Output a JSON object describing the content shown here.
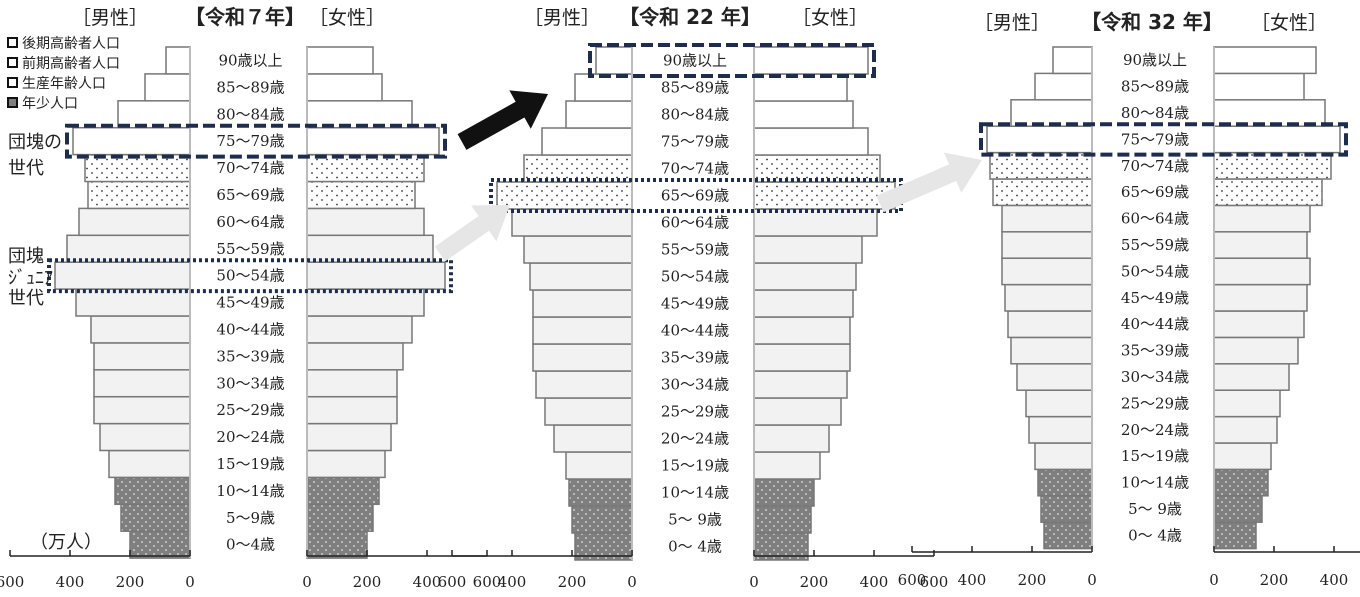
{
  "chart_data": {
    "type": "bar",
    "subtype": "population-pyramid",
    "unit_label": "（万人）",
    "age_groups": [
      "0～4歳",
      "5～9歳",
      "10～14歳",
      "15～19歳",
      "20～24歳",
      "25～29歳",
      "30～34歳",
      "35～39歳",
      "40～44歳",
      "45～49歳",
      "50～54歳",
      "55～59歳",
      "60～64歳",
      "65～69歳",
      "70～74歳",
      "75～79歳",
      "80～84歳",
      "85～89歳",
      "90歳以上"
    ],
    "age_groups_panel23": [
      "0～ 4歳",
      "5～ 9歳",
      "10～14歳",
      "15～19歳",
      "20～24歳",
      "25～29歳",
      "30～34歳",
      "35～39歳",
      "40～44歳",
      "45～49歳",
      "50～54歳",
      "55～59歳",
      "60～64歳",
      "65～69歳",
      "70～74歳",
      "75～79歳",
      "80～84歳",
      "85～89歳",
      "90歳以上"
    ],
    "category_colors": {
      "elderly_late": "#ffffff",
      "elderly_early": "#ffffff",
      "working_age": "#f2f2f2",
      "youth": "#7f7f7f"
    },
    "legend": [
      {
        "label": "後期高齢者人口",
        "key": "elderly_late"
      },
      {
        "label": "前期高齢者人口",
        "key": "elderly_early"
      },
      {
        "label": "生産年齢人口",
        "key": "working_age"
      },
      {
        "label": "年少人口",
        "key": "youth"
      }
    ],
    "xlim": [
      0,
      600
    ],
    "male_ticks": [
      "600",
      "400",
      "200",
      "0"
    ],
    "female_ticks": [
      "0",
      "200",
      "400",
      "600"
    ],
    "panels": [
      {
        "title": "【令和７年】",
        "male_label": "［男性］",
        "female_label": "［女性］",
        "male": [
          200,
          230,
          250,
          270,
          300,
          320,
          320,
          320,
          330,
          380,
          450,
          410,
          370,
          340,
          350,
          390,
          240,
          150,
          80
        ],
        "female": [
          200,
          220,
          240,
          260,
          280,
          300,
          300,
          320,
          350,
          390,
          460,
          420,
          390,
          360,
          390,
          440,
          350,
          250,
          220
        ],
        "highlights": [
          {
            "age": "75～79歳",
            "style": "dashed"
          },
          {
            "age": "50～54歳",
            "style": "dotted"
          }
        ]
      },
      {
        "title": "【令和 22 年】",
        "male_label": "［男性］",
        "female_label": "［女性］",
        "male": [
          190,
          200,
          210,
          220,
          260,
          290,
          320,
          330,
          330,
          330,
          340,
          360,
          400,
          450,
          360,
          300,
          220,
          190,
          120
        ],
        "female": [
          180,
          190,
          200,
          220,
          250,
          290,
          310,
          320,
          320,
          330,
          340,
          360,
          410,
          470,
          420,
          380,
          330,
          310,
          380
        ],
        "highlights": [
          {
            "age": "90歳以上",
            "style": "dashed"
          },
          {
            "age": "65～69歳",
            "style": "dotted"
          }
        ]
      },
      {
        "title": "【令和 32 年】",
        "male_label": "［男性］",
        "female_label": "［女性］",
        "male": [
          160,
          170,
          180,
          190,
          210,
          220,
          250,
          270,
          280,
          290,
          300,
          300,
          300,
          330,
          340,
          350,
          270,
          190,
          130
        ],
        "female": [
          140,
          160,
          180,
          190,
          210,
          220,
          250,
          280,
          300,
          310,
          320,
          310,
          320,
          360,
          390,
          420,
          370,
          300,
          340
        ],
        "highlights": [
          {
            "age": "75～79歳",
            "style": "dashed"
          }
        ]
      }
    ],
    "annotations": [
      {
        "text": "団塊の\n世代",
        "panel": 0,
        "age": "75～79歳"
      },
      {
        "text": "団塊\nｼﾞｭﾆｱ\n世代",
        "panel": 0,
        "age": "50～54歳"
      }
    ],
    "arrows": [
      {
        "color": "#111111",
        "from": "panel0-75",
        "to": "panel1-90"
      },
      {
        "color": "#e6e6e6",
        "from": "panel0-50",
        "to": "panel1-65"
      },
      {
        "color": "#e6e6e6",
        "from": "panel1-65",
        "to": "panel2-75"
      }
    ]
  }
}
